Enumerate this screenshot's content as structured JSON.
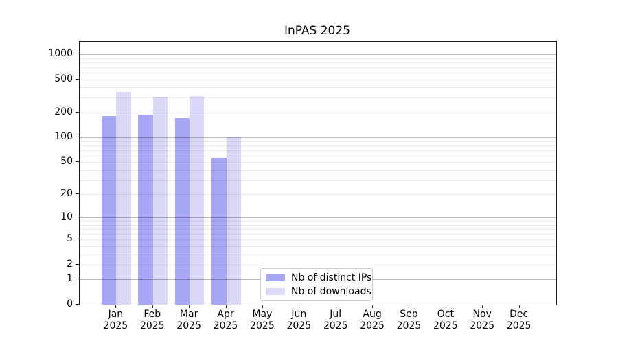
{
  "title": "InPAS 2025",
  "legend": {
    "items": [
      {
        "label": "Nb of distinct IPs",
        "color": "#a7a7f5"
      },
      {
        "label": "Nb of downloads",
        "color": "#dadaf8"
      }
    ]
  },
  "chart_data": {
    "type": "bar",
    "title": "InPAS 2025",
    "categories": [
      "Jan 2025",
      "Feb 2025",
      "Mar 2025",
      "Apr 2025",
      "May 2025",
      "Jun 2025",
      "Jul 2025",
      "Aug 2025",
      "Sep 2025",
      "Oct 2025",
      "Nov 2025",
      "Dec 2025"
    ],
    "series": [
      {
        "name": "Nb of distinct IPs",
        "color": "#a7a7f5",
        "values": [
          182,
          190,
          170,
          56,
          0,
          0,
          0,
          0,
          0,
          0,
          0,
          0
        ]
      },
      {
        "name": "Nb of downloads",
        "color": "#dadaf8",
        "values": [
          350,
          310,
          315,
          100,
          0,
          0,
          0,
          0,
          0,
          0,
          0,
          0
        ]
      }
    ],
    "yscale": "log1p",
    "yticks": [
      0,
      1,
      2,
      5,
      10,
      20,
      50,
      100,
      200,
      500,
      1000
    ],
    "ylim": [
      0,
      1400
    ],
    "grid": true,
    "grid_major_at": [
      1,
      10,
      100,
      1000
    ],
    "legend_position": "lower center",
    "xlabel": "",
    "ylabel": ""
  }
}
